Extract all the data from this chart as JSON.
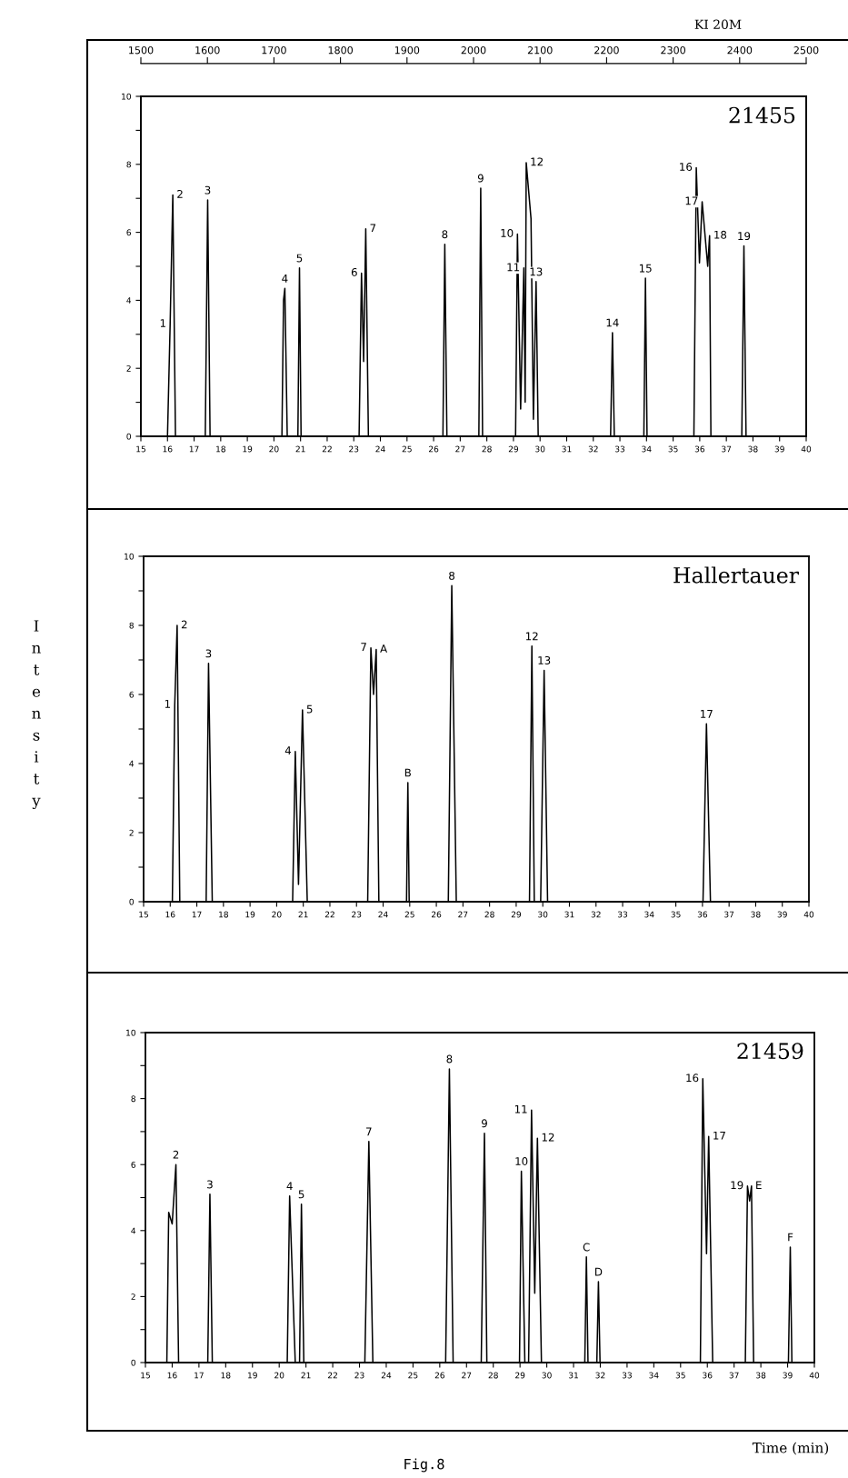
{
  "chart_data": [
    {
      "type": "line",
      "title": "21455",
      "x2label": "KI 20M",
      "xlim": [
        15,
        40
      ],
      "ylim": [
        0,
        10
      ],
      "xticks": [
        15,
        16,
        17,
        18,
        19,
        20,
        21,
        22,
        23,
        24,
        25,
        26,
        27,
        28,
        29,
        30,
        31,
        32,
        33,
        34,
        35,
        36,
        37,
        38,
        39,
        40
      ],
      "yticks": [
        0,
        {
          "value": 1,
          "label": null
        },
        2,
        {
          "value": 3,
          "label": null
        },
        4,
        {
          "value": 5,
          "label": null
        },
        6,
        {
          "value": 7,
          "label": null
        },
        8,
        {
          "value": 9,
          "label": null
        },
        10
      ],
      "x2lim": [
        1500,
        2500
      ],
      "x2ticks": [
        1500,
        1600,
        1700,
        1800,
        1900,
        2000,
        2100,
        2200,
        2300,
        2400,
        2500
      ],
      "grid": false,
      "legend": false,
      "marker": "none",
      "line_style": "solid",
      "series": [
        {
          "color": "#000000",
          "x": [
            15,
            16.0,
            16.1,
            16.2,
            16.3,
            17.42,
            17.51,
            17.6,
            20.3,
            20.36,
            20.41,
            20.5,
            20.9,
            20.96,
            21.02,
            23.2,
            23.29,
            23.37,
            23.45,
            23.55,
            26.35,
            26.42,
            26.5,
            27.7,
            27.77,
            27.84,
            29.08,
            29.15,
            29.27,
            29.39,
            29.44,
            29.48,
            29.66,
            29.75,
            29.85,
            29.93,
            32.65,
            32.72,
            32.79,
            33.9,
            33.96,
            34.02,
            35.78,
            35.87,
            35.99,
            36.09,
            36.3,
            36.37,
            36.42,
            37.58,
            37.66,
            37.74,
            40
          ],
          "values": [
            0,
            0,
            3.3,
            7.1,
            0,
            0,
            6.95,
            0,
            0,
            4.0,
            4.35,
            0,
            0,
            4.95,
            0,
            0,
            4.8,
            2.2,
            6.1,
            0,
            0,
            5.65,
            0,
            0,
            7.3,
            0,
            0,
            5.95,
            0.8,
            4.95,
            1.0,
            8.05,
            6.4,
            0.5,
            4.55,
            0,
            0,
            3.05,
            0,
            0,
            4.65,
            0,
            0,
            7.9,
            5.1,
            6.9,
            5.0,
            5.9,
            0,
            0,
            5.6,
            0,
            0
          ]
        }
      ],
      "annotations": [
        {
          "text": "1",
          "x": 16.1,
          "y": 3.3
        },
        {
          "text": "2",
          "x": 16.2,
          "y": 7.1
        },
        {
          "text": "3",
          "x": 17.51,
          "y": 6.95
        },
        {
          "text": "4",
          "x": 20.41,
          "y": 4.35
        },
        {
          "text": "5",
          "x": 20.96,
          "y": 4.95
        },
        {
          "text": "6",
          "x": 23.29,
          "y": 4.8
        },
        {
          "text": "7",
          "x": 23.45,
          "y": 6.1
        },
        {
          "text": "8",
          "x": 26.42,
          "y": 5.65
        },
        {
          "text": "9",
          "x": 27.77,
          "y": 7.3
        },
        {
          "text": "10",
          "x": 29.15,
          "y": 5.95
        },
        {
          "text": "11",
          "x": 29.39,
          "y": 4.95
        },
        {
          "text": "12",
          "x": 29.48,
          "y": 8.05
        },
        {
          "text": "13",
          "x": 29.85,
          "y": 4.55
        },
        {
          "text": "14",
          "x": 32.72,
          "y": 3.05
        },
        {
          "text": "15",
          "x": 33.96,
          "y": 4.65
        },
        {
          "text": "16",
          "x": 35.87,
          "y": 7.9
        },
        {
          "text": "17",
          "x": 36.09,
          "y": 6.9
        },
        {
          "text": "18",
          "x": 36.37,
          "y": 5.9
        },
        {
          "text": "19",
          "x": 37.66,
          "y": 5.6
        }
      ]
    },
    {
      "type": "line",
      "title": "Hallertauer",
      "ylabel": "Intensity",
      "xlim": [
        15,
        40
      ],
      "ylim": [
        0,
        10
      ],
      "xticks": [
        15,
        16,
        17,
        18,
        19,
        20,
        21,
        22,
        23,
        24,
        25,
        26,
        27,
        28,
        29,
        30,
        31,
        32,
        33,
        34,
        35,
        36,
        37,
        38,
        39,
        40
      ],
      "yticks": [
        0,
        {
          "value": 1,
          "label": null
        },
        2,
        {
          "value": 3,
          "label": null
        },
        4,
        {
          "value": 5,
          "label": null
        },
        6,
        {
          "value": 7,
          "label": null
        },
        8,
        {
          "value": 9,
          "label": null
        },
        10
      ],
      "grid": false,
      "legend": false,
      "marker": "none",
      "line_style": "solid",
      "series": [
        {
          "color": "#000000",
          "x": [
            15,
            16.08,
            16.17,
            16.26,
            16.36,
            17.35,
            17.44,
            17.58,
            20.6,
            20.7,
            20.82,
            20.97,
            21.15,
            23.42,
            23.54,
            23.64,
            23.74,
            23.84,
            24.88,
            24.93,
            24.98,
            26.45,
            26.58,
            26.75,
            29.5,
            29.59,
            29.68,
            29.92,
            30.05,
            30.18,
            36.02,
            36.15,
            36.3,
            40
          ],
          "values": [
            0,
            0,
            5.7,
            8.0,
            0,
            0,
            6.9,
            0,
            0,
            4.35,
            0.5,
            5.55,
            0,
            0,
            7.35,
            6.0,
            7.3,
            0,
            0,
            3.45,
            0,
            0,
            9.15,
            0,
            0,
            7.4,
            0,
            0,
            6.7,
            0,
            0,
            5.15,
            0,
            0
          ]
        }
      ],
      "annotations": [
        {
          "text": "1",
          "x": 16.17,
          "y": 5.7
        },
        {
          "text": "2",
          "x": 16.26,
          "y": 8.0
        },
        {
          "text": "3",
          "x": 17.44,
          "y": 6.9
        },
        {
          "text": "4",
          "x": 20.7,
          "y": 4.35
        },
        {
          "text": "5",
          "x": 20.97,
          "y": 5.55
        },
        {
          "text": "7",
          "x": 23.54,
          "y": 7.35
        },
        {
          "text": "A",
          "x": 23.74,
          "y": 7.3
        },
        {
          "text": "B",
          "x": 24.93,
          "y": 3.45
        },
        {
          "text": "8",
          "x": 26.58,
          "y": 9.15
        },
        {
          "text": "12",
          "x": 29.59,
          "y": 7.4
        },
        {
          "text": "13",
          "x": 30.05,
          "y": 6.7
        },
        {
          "text": "17",
          "x": 36.15,
          "y": 5.15
        }
      ]
    },
    {
      "type": "line",
      "title": "21459",
      "xlabel": "Time (min)",
      "xlim": [
        15,
        40
      ],
      "ylim": [
        0,
        10
      ],
      "xticks": [
        15,
        16,
        17,
        18,
        19,
        20,
        21,
        22,
        23,
        24,
        25,
        26,
        27,
        28,
        29,
        30,
        31,
        32,
        33,
        34,
        35,
        36,
        37,
        38,
        39,
        40
      ],
      "yticks": [
        0,
        {
          "value": 1,
          "label": null
        },
        2,
        {
          "value": 3,
          "label": null
        },
        4,
        {
          "value": 5,
          "label": null
        },
        6,
        {
          "value": 7,
          "label": null
        },
        8,
        {
          "value": 9,
          "label": null
        },
        10
      ],
      "grid": false,
      "legend": false,
      "marker": "none",
      "line_style": "solid",
      "series": [
        {
          "color": "#000000",
          "x": [
            15,
            15.8,
            15.87,
            16.0,
            16.14,
            16.24,
            17.33,
            17.41,
            17.5,
            20.3,
            20.39,
            20.6,
            20.76,
            20.83,
            20.92,
            23.2,
            23.35,
            23.5,
            26.22,
            26.36,
            26.5,
            27.55,
            27.67,
            27.76,
            28.98,
            29.05,
            29.18,
            29.32,
            29.43,
            29.55,
            29.65,
            29.8,
            31.42,
            31.48,
            31.54,
            31.87,
            31.93,
            31.99,
            35.74,
            35.83,
            35.97,
            36.05,
            36.2,
            37.42,
            37.5,
            37.58,
            37.65,
            37.73,
            39.03,
            39.1,
            39.16,
            40
          ],
          "values": [
            0,
            0,
            4.55,
            4.2,
            6.0,
            0,
            0,
            5.1,
            0,
            0,
            5.05,
            0,
            0,
            4.8,
            0,
            0,
            6.7,
            0,
            0,
            8.9,
            0,
            0,
            6.95,
            0,
            0,
            5.8,
            0,
            0,
            7.65,
            2.1,
            6.8,
            0,
            0,
            3.2,
            0,
            0,
            2.45,
            0,
            0,
            8.6,
            3.3,
            6.85,
            0,
            0,
            5.35,
            4.9,
            5.35,
            0,
            0,
            3.5,
            0,
            0
          ]
        }
      ],
      "annotations": [
        {
          "text": "2",
          "x": 16.14,
          "y": 6.0
        },
        {
          "text": "3",
          "x": 17.41,
          "y": 5.1
        },
        {
          "text": "4",
          "x": 20.39,
          "y": 5.05
        },
        {
          "text": "5",
          "x": 20.83,
          "y": 4.8
        },
        {
          "text": "7",
          "x": 23.35,
          "y": 6.7
        },
        {
          "text": "8",
          "x": 26.36,
          "y": 8.9
        },
        {
          "text": "9",
          "x": 27.67,
          "y": 6.95
        },
        {
          "text": "10",
          "x": 29.05,
          "y": 5.8
        },
        {
          "text": "11",
          "x": 29.43,
          "y": 7.65
        },
        {
          "text": "12",
          "x": 29.65,
          "y": 6.8
        },
        {
          "text": "C",
          "x": 31.48,
          "y": 3.2
        },
        {
          "text": "D",
          "x": 31.93,
          "y": 2.45
        },
        {
          "text": "16",
          "x": 35.83,
          "y": 8.6
        },
        {
          "text": "17",
          "x": 36.05,
          "y": 6.85
        },
        {
          "text": "19",
          "x": 37.5,
          "y": 5.35
        },
        {
          "text": "E",
          "x": 37.65,
          "y": 5.35
        },
        {
          "text": "F",
          "x": 39.1,
          "y": 3.5
        },
        "Fig.8"
      ]
    }
  ]
}
